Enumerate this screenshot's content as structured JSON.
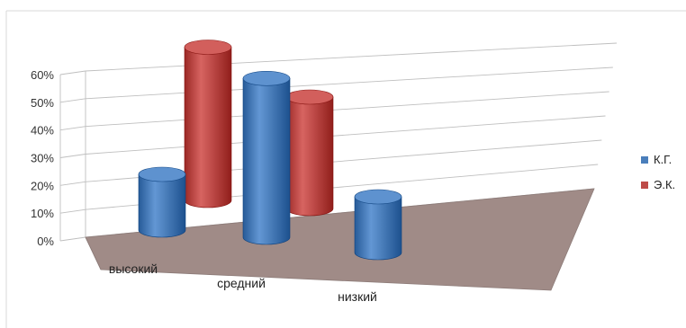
{
  "chart_data": {
    "type": "bar",
    "title": "",
    "xlabel": "",
    "ylabel": "",
    "ylim": [
      0,
      0.6
    ],
    "y_tick_labels": [
      "0%",
      "10%",
      "20%",
      "30%",
      "40%",
      "50%",
      "60%"
    ],
    "categories": [
      "высокий",
      "средний",
      "низкий"
    ],
    "series": [
      {
        "name": "К.Г.",
        "color": "#4a7ebb",
        "values": [
          0.2,
          0.57,
          0.2
        ]
      },
      {
        "name": "Э.К.",
        "color": "#be4b48",
        "values": [
          0.55,
          0.4,
          0.0
        ]
      }
    ],
    "legend_position": "right",
    "grid": true,
    "floor_color": "#a08b87",
    "style": "3d-cylinder"
  }
}
